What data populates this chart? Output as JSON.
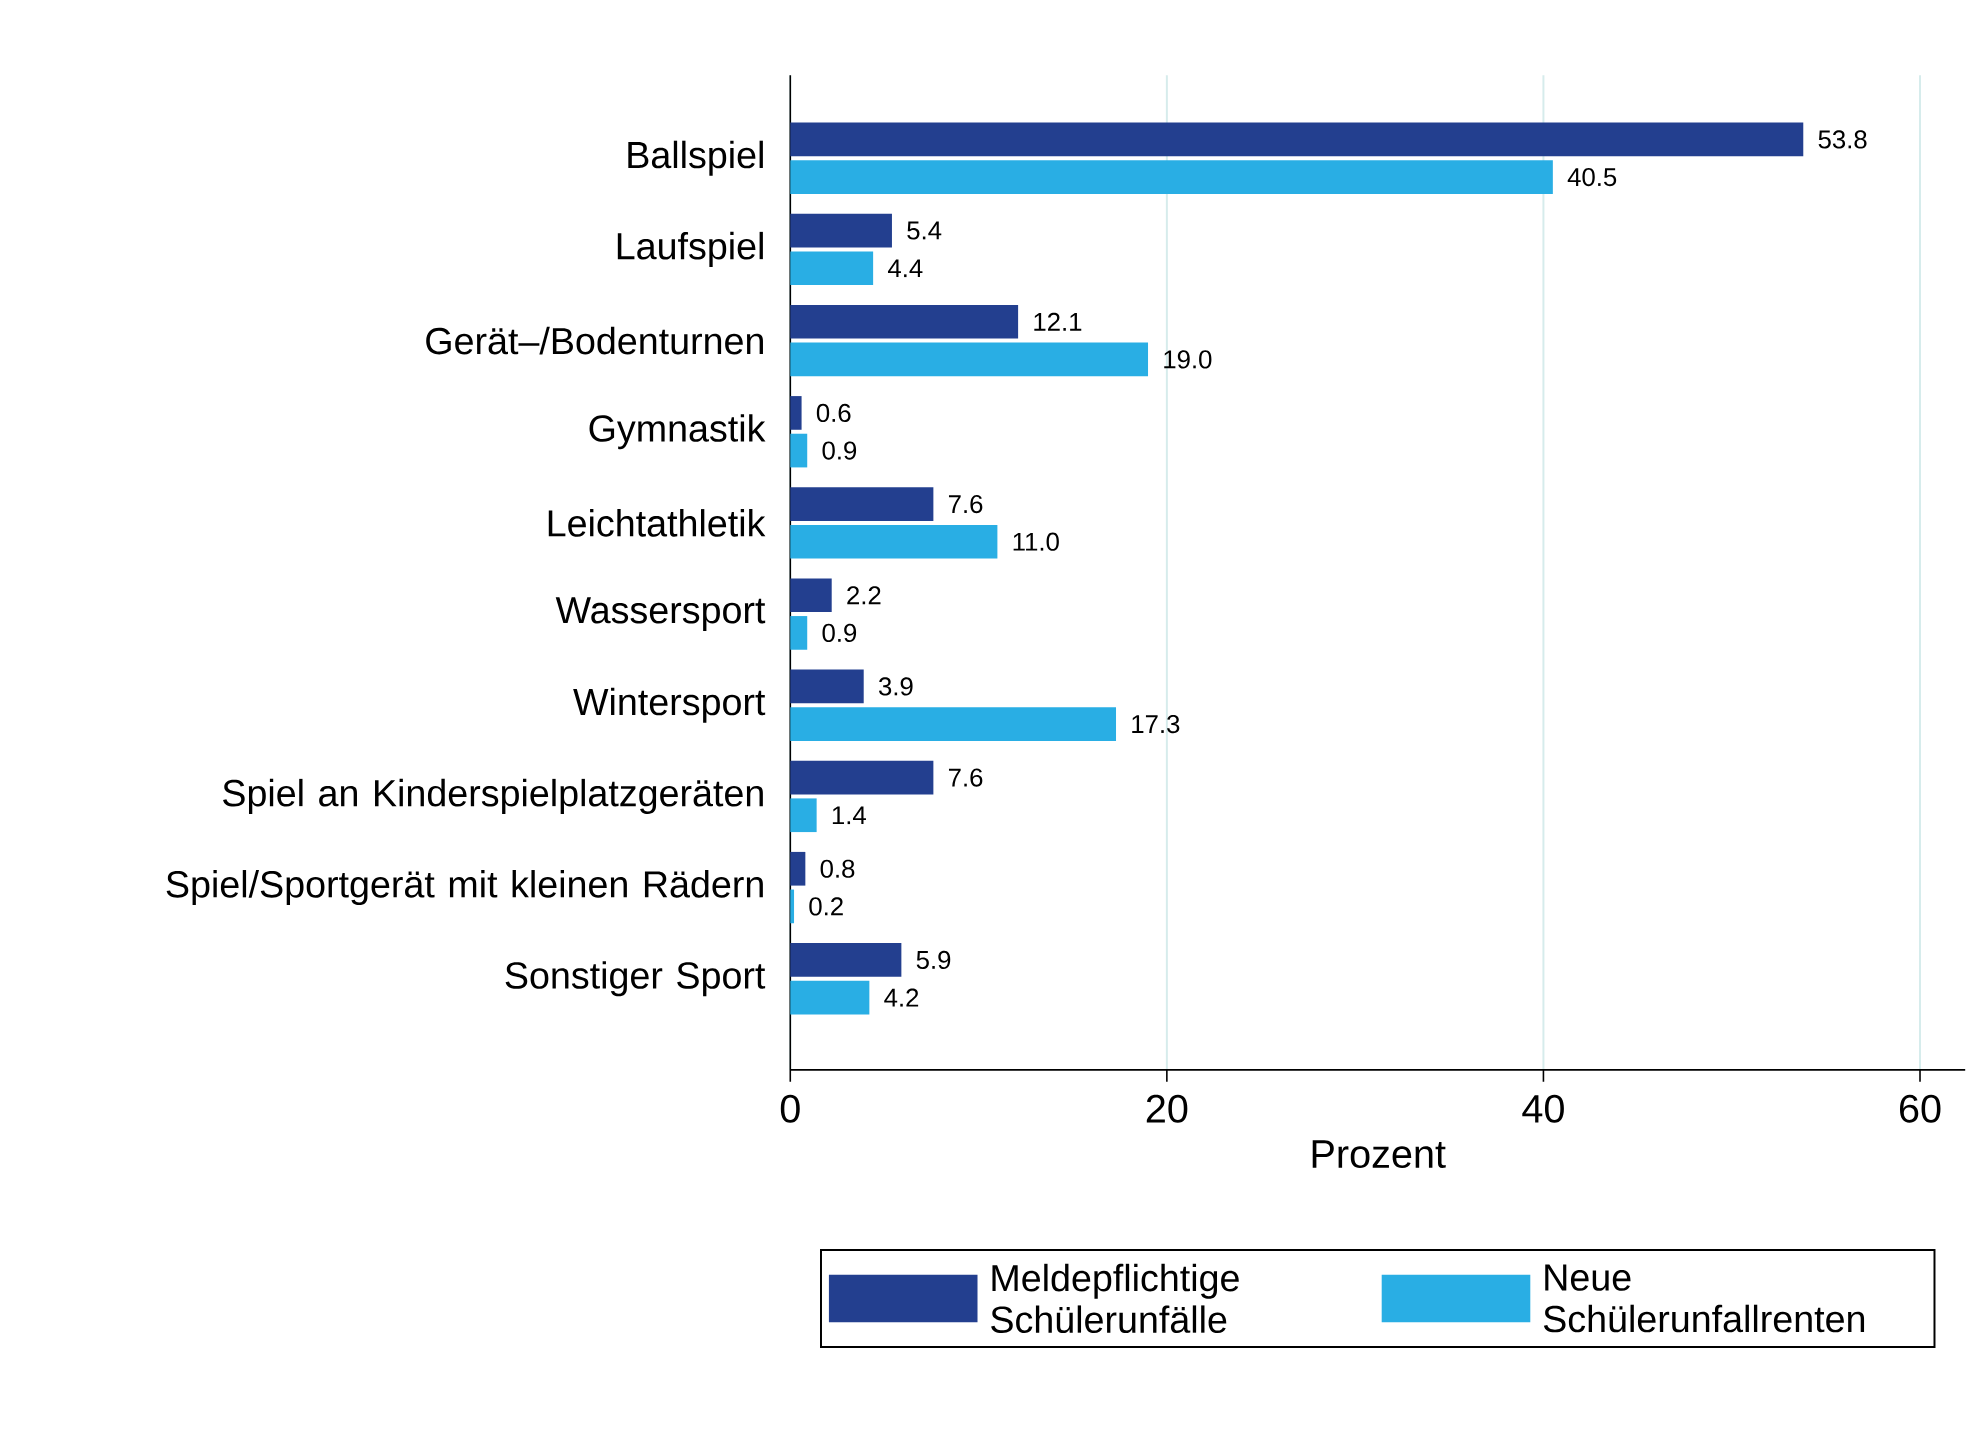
{
  "chart_data": {
    "type": "bar",
    "orientation": "horizontal",
    "categories": [
      "Ballspiel",
      "Laufspiel",
      "Gerät–/Bodenturnen",
      "Gymnastik",
      "Leichtathletik",
      "Wassersport",
      "Wintersport",
      "Spiel an Kinderspielplatzgeräten",
      "Spiel/Sportgerät mit kleinen Rädern",
      "Sonstiger Sport"
    ],
    "series": [
      {
        "name": "Meldepflichtige Schülerunfälle",
        "color": "#233f8f",
        "values": [
          53.8,
          5.4,
          12.1,
          0.6,
          7.6,
          2.2,
          3.9,
          7.6,
          0.8,
          5.9
        ],
        "value_labels": [
          "53.8",
          "5.4",
          "12.1",
          "0.6",
          "7.6",
          "2.2",
          "3.9",
          "7.6",
          "0.8",
          "5.9"
        ]
      },
      {
        "name": "Neue Schülerunfallrenten",
        "color": "#29aee4",
        "values": [
          40.5,
          4.4,
          19.0,
          0.9,
          11.0,
          0.9,
          17.3,
          1.4,
          0.2,
          4.2
        ],
        "value_labels": [
          "40.5",
          "4.4",
          "19.0",
          "0.9",
          "11.0",
          "0.9",
          "17.3",
          "1.4",
          "0.2",
          "4.2"
        ]
      }
    ],
    "xlabel": "Prozent",
    "xlim": [
      0,
      62.4
    ],
    "xticks": [
      0,
      20,
      40,
      60
    ],
    "grid": "x",
    "legend": "bottom"
  }
}
